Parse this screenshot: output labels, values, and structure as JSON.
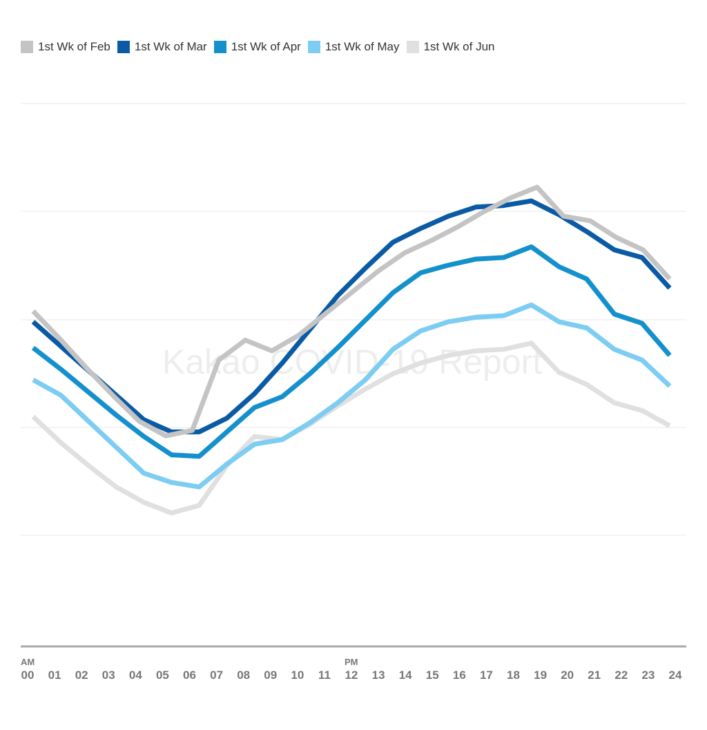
{
  "chart_data": {
    "type": "line",
    "title": "",
    "xlabel": "",
    "ylabel": "",
    "watermark": "Kakao COVID-19 Report",
    "ylim": [
      0,
      100
    ],
    "grid": true,
    "legend_position": "top-left",
    "x_ticks": [
      "00",
      "01",
      "02",
      "03",
      "04",
      "05",
      "06",
      "07",
      "08",
      "09",
      "10",
      "11",
      "12",
      "13",
      "14",
      "15",
      "16",
      "17",
      "18",
      "19",
      "20",
      "21",
      "22",
      "23",
      "24"
    ],
    "x_tick_prefixes": [
      {
        "index": 0,
        "text": "AM"
      },
      {
        "index": 12,
        "text": "PM"
      }
    ],
    "series": [
      {
        "name": "1st Wk of Feb",
        "color": "#c4c4c4",
        "values": [
          66.5,
          57.5,
          48,
          39,
          30.5,
          25.7,
          27.5,
          50.5,
          57,
          53.5,
          58.5,
          65.5,
          72.5,
          79.5,
          85.5,
          89.5,
          94,
          99,
          103.5,
          107,
          97.5,
          96,
          90.5,
          86.5,
          77
        ]
      },
      {
        "name": "1st Wk of Mar",
        "color": "#0b5aa4",
        "values": [
          63,
          55,
          47,
          39,
          31,
          27,
          27,
          31.5,
          39.5,
          49.5,
          60.5,
          71.5,
          80.5,
          89,
          93.5,
          97.5,
          100.5,
          101,
          102.5,
          98,
          92.5,
          86.5,
          84,
          74
        ]
      },
      {
        "name": "1st Wk of Apr",
        "color": "#1490cc",
        "values": [
          54.5,
          47.5,
          40,
          32.5,
          25.5,
          19.5,
          19,
          27,
          35,
          38.5,
          46,
          54.5,
          63.5,
          72.5,
          79,
          81.5,
          83.5,
          84,
          87.5,
          81,
          77,
          65.5,
          62.5,
          52
        ]
      },
      {
        "name": "1st Wk of May",
        "color": "#7dcdf3",
        "values": [
          44,
          39,
          30.5,
          22,
          13.5,
          10.5,
          9,
          16.5,
          23,
          24.5,
          30,
          36.5,
          44,
          54,
          60,
          63,
          64.5,
          65,
          68.5,
          63,
          61,
          54,
          50.5,
          42
        ]
      },
      {
        "name": "1st Wk of Jun",
        "color": "#e0e0e0",
        "values": [
          32,
          23.5,
          16,
          9,
          4,
          0.5,
          3,
          16,
          25.5,
          24.5,
          29.5,
          35.5,
          41,
          46,
          49.5,
          52,
          53.5,
          54,
          56,
          46.5,
          42.5,
          36.5,
          34,
          29
        ]
      }
    ]
  }
}
